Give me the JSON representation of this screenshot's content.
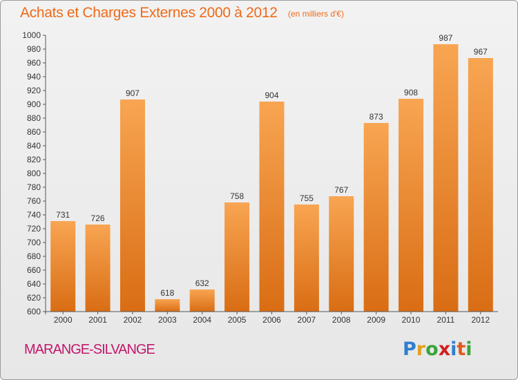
{
  "header": {
    "title": "Achats et Charges Externes 2000 à 2012",
    "subtitle": "(en milliers d'€)"
  },
  "footer": {
    "town": "MARANGE-SILVANGE",
    "logo_letters": [
      "P",
      "r",
      "o",
      "x",
      "i",
      "t",
      "i"
    ],
    "logo_colors": [
      "#2f7fd0",
      "#e0a020",
      "#3aa43a",
      "#d02020",
      "#2f7fd0",
      "#e05a20",
      "#3aa43a"
    ]
  },
  "colors": {
    "bar_light": "#f8a552",
    "bar_dark": "#d96d14",
    "title": "#ee6a18",
    "town": "#c2186b"
  },
  "chart_data": {
    "type": "bar",
    "title": "Achats et Charges Externes 2000 à 2012",
    "subtitle": "(en milliers d'€)",
    "xlabel": "",
    "ylabel": "",
    "categories": [
      "2000",
      "2001",
      "2002",
      "2003",
      "2004",
      "2005",
      "2006",
      "2007",
      "2008",
      "2009",
      "2010",
      "2011",
      "2012"
    ],
    "values": [
      731,
      726,
      907,
      618,
      632,
      758,
      904,
      755,
      767,
      873,
      908,
      987,
      967
    ],
    "ylim": [
      600,
      1000
    ],
    "ytick_step": 20,
    "grid": false,
    "legend": "none"
  }
}
